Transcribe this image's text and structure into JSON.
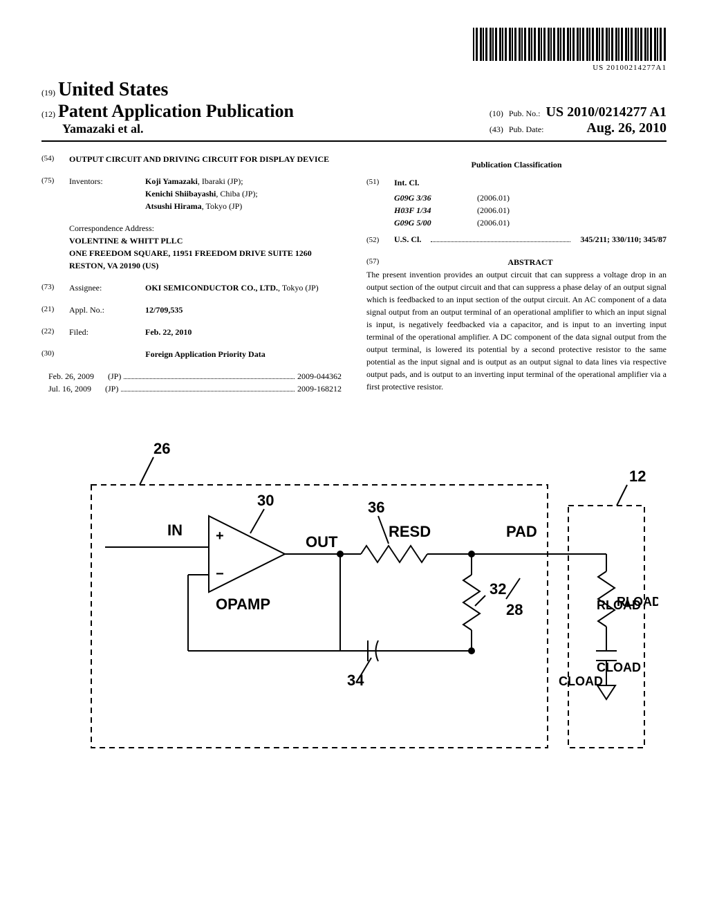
{
  "barcode_number": "US 20100214277A1",
  "country_small": "(19)",
  "country_big": "United States",
  "twelve": "(12)",
  "pub_title": "Patent Application Publication",
  "authors": "Yamazaki et al.",
  "pubno_tag": "(10)",
  "pubno_label": "Pub. No.:",
  "pubno": "US 2010/0214277 A1",
  "pubdate_tag": "(43)",
  "pubdate_label": "Pub. Date:",
  "pubdate": "Aug. 26, 2010",
  "f54": {
    "num": "(54)",
    "title": "OUTPUT CIRCUIT AND DRIVING CIRCUIT FOR DISPLAY DEVICE"
  },
  "f75": {
    "num": "(75)",
    "label": "Inventors:",
    "inv1": "Koji Yamazaki",
    "inv1loc": ", Ibaraki (JP);",
    "inv2": "Kenichi Shiibayashi",
    "inv2loc": ", Chiba (JP);",
    "inv3": "Atsushi Hirama",
    "inv3loc": ", Tokyo (JP)"
  },
  "correspondence_label": "Correspondence Address:",
  "corr_l1": "VOLENTINE & WHITT PLLC",
  "corr_l2": "ONE FREEDOM SQUARE, 11951 FREEDOM DRIVE SUITE 1260",
  "corr_l3": "RESTON, VA 20190 (US)",
  "f73": {
    "num": "(73)",
    "label": "Assignee:",
    "name": "OKI SEMICONDUCTOR CO., LTD.",
    "loc": ", Tokyo (JP)"
  },
  "f21": {
    "num": "(21)",
    "label": "Appl. No.:",
    "val": "12/709,535"
  },
  "f22": {
    "num": "(22)",
    "label": "Filed:",
    "val": "Feb. 22, 2010"
  },
  "f30": {
    "num": "(30)",
    "title": "Foreign Application Priority Data"
  },
  "priority": [
    {
      "date": "Feb. 26, 2009",
      "cc": "(JP)",
      "num": "2009-044362"
    },
    {
      "date": "Jul. 16, 2009",
      "cc": "(JP)",
      "num": "2009-168212"
    }
  ],
  "pubclass_title": "Publication Classification",
  "f51": {
    "num": "(51)",
    "label": "Int. Cl."
  },
  "intcl": [
    {
      "code": "G09G 3/36",
      "ver": "(2006.01)"
    },
    {
      "code": "H03F 1/34",
      "ver": "(2006.01)"
    },
    {
      "code": "G09G 5/00",
      "ver": "(2006.01)"
    }
  ],
  "f52": {
    "num": "(52)",
    "label": "U.S. Cl.",
    "val": "345/211; 330/110; 345/87"
  },
  "f57": {
    "num": "(57)",
    "title": "ABSTRACT"
  },
  "abstract": "The present invention provides an output circuit that can suppress a voltage drop in an output section of the output circuit and that can suppress a phase delay of an output signal which is feedbacked to an input section of the output circuit. An AC component of a data signal output from an output terminal of an operational amplifier to which an input signal is input, is negatively feedbacked via a capacitor, and is input to an inverting input terminal of the operational amplifier. A DC component of the data signal output from the output terminal, is lowered its potential by a second protective resistor to the same potential as the input signal and is output as an output signal to data lines via respective output pads, and is output to an inverting input terminal of the operational amplifier via a first protective resistor.",
  "diagram": {
    "labels": {
      "n26": "26",
      "in": "IN",
      "opamp": "OPAMP",
      "n30": "30",
      "out": "OUT",
      "n36": "36",
      "resd": "RESD",
      "n32": "32",
      "n34": "34",
      "pad": "PAD",
      "n28": "28",
      "n12": "12",
      "rload": "RLOAD",
      "cload": "CLOAD"
    },
    "stroke": "#000000",
    "stroke_width": 2,
    "font_family": "Arial, Helvetica, sans-serif",
    "label_font_size": 22,
    "num_font_size": 22
  }
}
